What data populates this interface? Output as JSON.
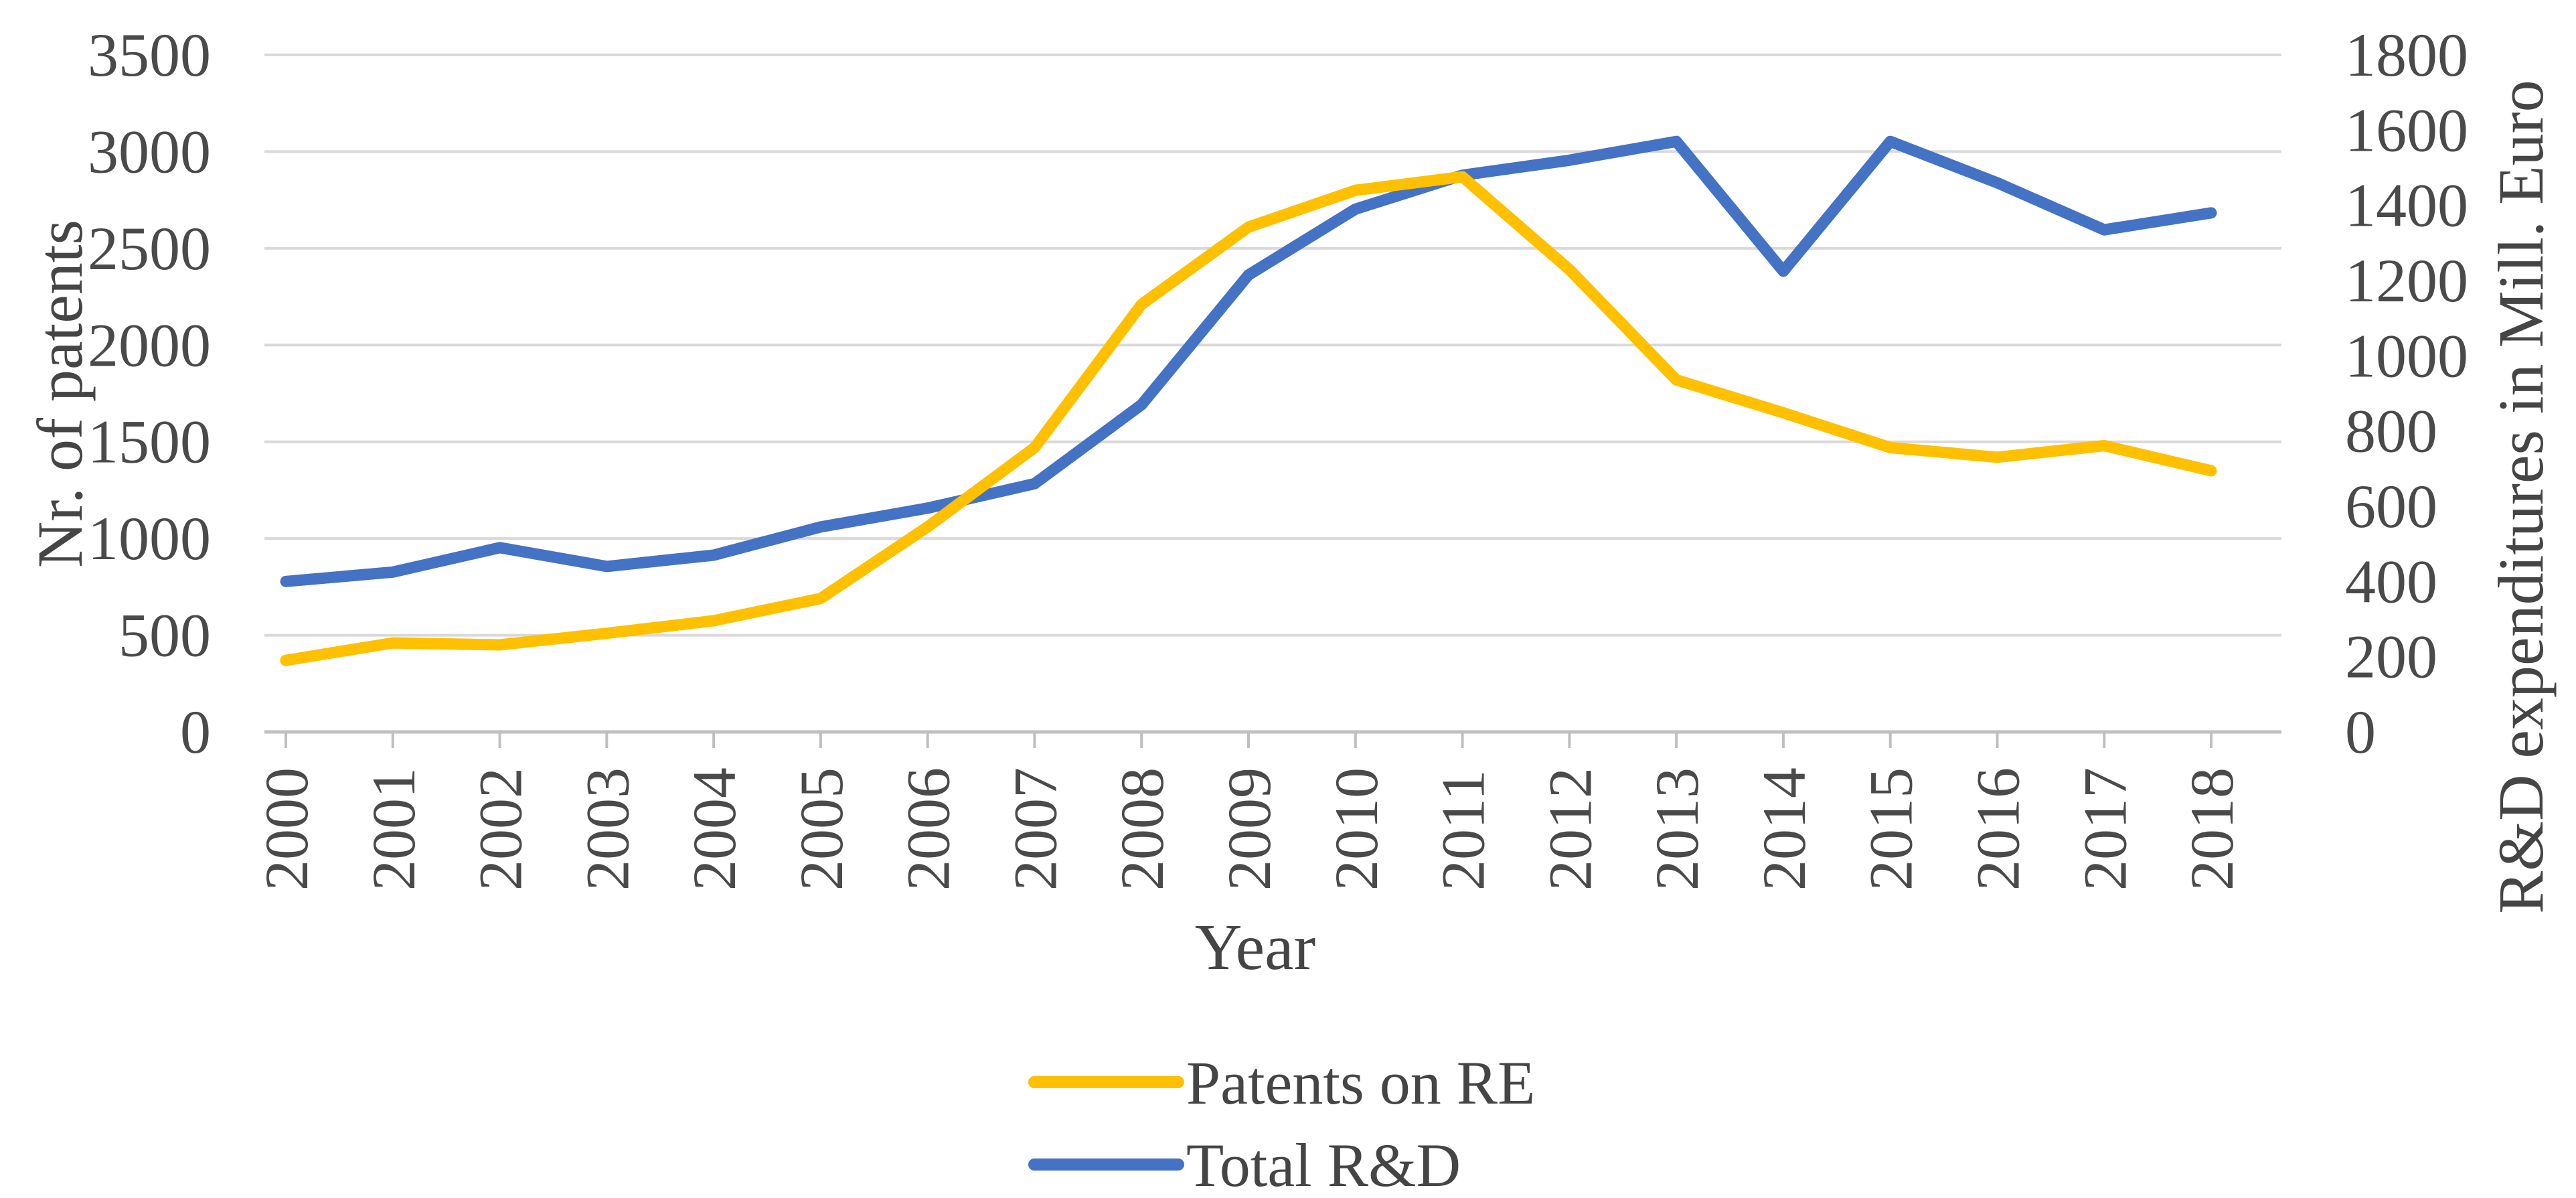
{
  "chart_data": {
    "type": "line",
    "x": [
      "2000",
      "2001",
      "2002",
      "2003",
      "2004",
      "2005",
      "2006",
      "2007",
      "2008",
      "2009",
      "2010",
      "2011",
      "2012",
      "2013",
      "2014",
      "2015",
      "2016",
      "2017",
      "2018"
    ],
    "series": [
      {
        "name": "Patents on RE",
        "axis": "left",
        "color": "#FFC000",
        "values": [
          370,
          460,
          450,
          510,
          575,
          690,
          1060,
          1470,
          2210,
          2610,
          2800,
          2870,
          2390,
          1820,
          1650,
          1470,
          1420,
          1480,
          1350
        ]
      },
      {
        "name": "Total R&D",
        "axis": "right",
        "color": "#4472C4",
        "values": [
          400,
          425,
          490,
          440,
          470,
          545,
          595,
          660,
          870,
          1215,
          1390,
          1480,
          1520,
          1570,
          1225,
          1570,
          1460,
          1335,
          1380
        ]
      }
    ],
    "xlabel": "Year",
    "ylabel_left": "Nr. of patents",
    "ylabel_right": "R&D expenditures in Mill. Euro",
    "ylim_left": [
      0,
      3500
    ],
    "ytick_step_left": 500,
    "left_ticks": [
      "0",
      "500",
      "1000",
      "1500",
      "2000",
      "2500",
      "3000",
      "3500"
    ],
    "ylim_right": [
      0,
      1800
    ],
    "ytick_step_right": 200,
    "right_ticks": [
      "0",
      "200",
      "400",
      "600",
      "800",
      "1000",
      "1200",
      "1400",
      "1600",
      "1800"
    ],
    "grid": true,
    "legend_position": "bottom-center",
    "colors": {
      "gridline": "#D9D9D9",
      "axis_line": "#BFBFBF",
      "tick_text": "#4a4a4a",
      "title_text": "#454545",
      "background": "#ffffff",
      "series_patents": "#FFC000",
      "series_rd": "#4472C4"
    }
  },
  "legend": {
    "items": [
      {
        "label": "Patents on RE",
        "color": "#FFC000"
      },
      {
        "label": "Total R&D",
        "color": "#4472C4"
      }
    ]
  }
}
